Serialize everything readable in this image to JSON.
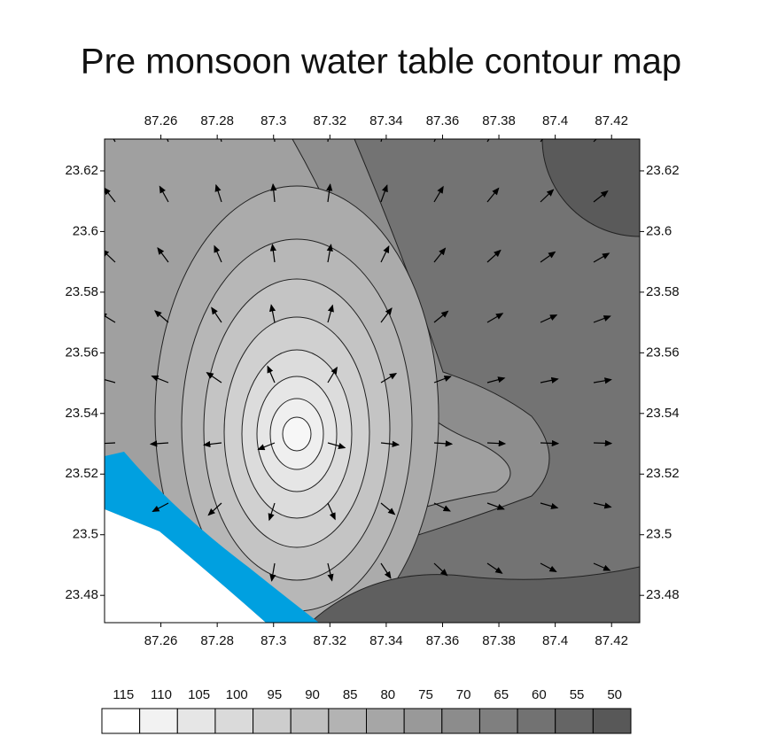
{
  "title": "Pre monsoon  water table contour map",
  "map": {
    "xlim": [
      87.24,
      87.43
    ],
    "ylim": [
      23.471,
      23.6305
    ],
    "xticks": [
      87.26,
      87.28,
      87.3,
      87.32,
      87.34,
      87.36,
      87.38,
      87.4,
      87.42
    ],
    "yticks": [
      23.48,
      23.5,
      23.52,
      23.54,
      23.56,
      23.58,
      23.6,
      23.62
    ]
  },
  "legend": {
    "levels": [
      115,
      110,
      105,
      100,
      95,
      90,
      85,
      80,
      75,
      70,
      65,
      60,
      55,
      50
    ],
    "colors": [
      "#ffffff",
      "#f2f2f2",
      "#e6e6e6",
      "#dadada",
      "#cdcdcd",
      "#c0c0c0",
      "#b3b3b3",
      "#a6a6a6",
      "#999999",
      "#8c8c8c",
      "#7f7f7f",
      "#727272",
      "#656565",
      "#585858"
    ]
  }
}
